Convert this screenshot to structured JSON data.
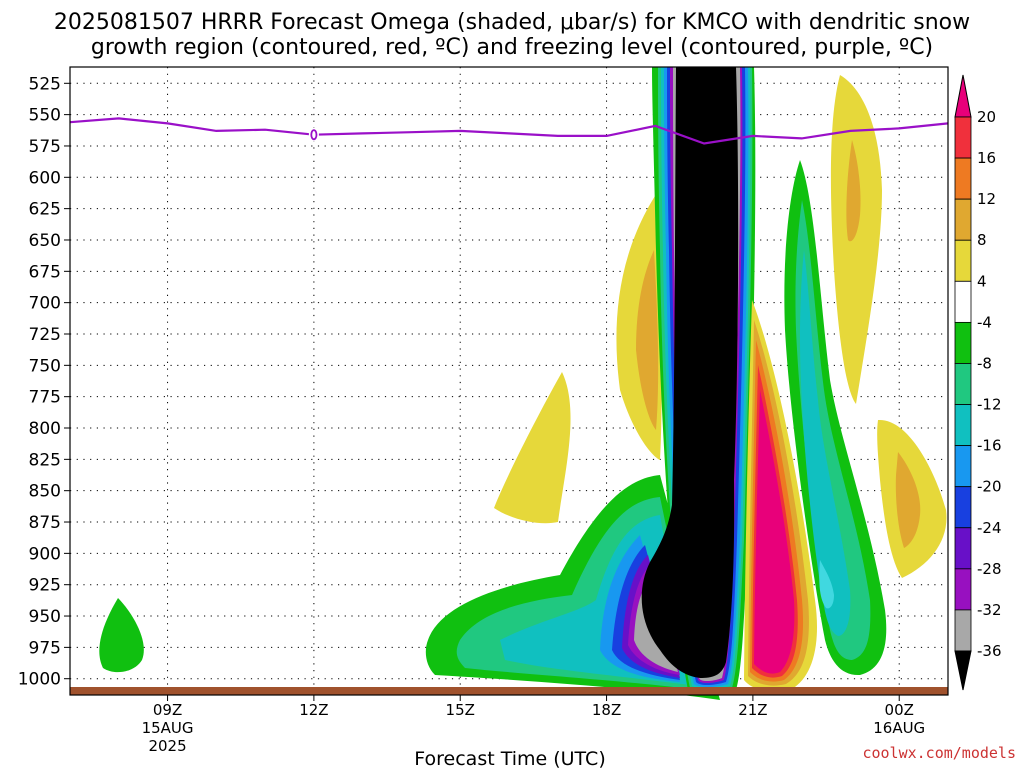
{
  "chart_data": {
    "type": "heatmap",
    "title_line1": "2025081507 HRRR Forecast Omega (shaded, μbar/s) for KMCO with dendritic snow",
    "title_line2": "growth region (contoured, red, ºC) and freezing level (contoured, purple, ºC)",
    "xlabel": "Forecast Time (UTC)",
    "credit": "coolwx.com/models",
    "y_ticks": [
      525,
      550,
      575,
      600,
      625,
      650,
      675,
      700,
      725,
      750,
      775,
      800,
      825,
      850,
      875,
      900,
      925,
      950,
      975,
      1000
    ],
    "ylim": [
      1013,
      512
    ],
    "x_ticks": [
      {
        "label": "09Z",
        "hour": 9,
        "sub1": "15AUG",
        "sub2": "2025"
      },
      {
        "label": "12Z",
        "hour": 12,
        "sub1": "",
        "sub2": ""
      },
      {
        "label": "15Z",
        "hour": 15,
        "sub1": "",
        "sub2": ""
      },
      {
        "label": "18Z",
        "hour": 18,
        "sub1": "",
        "sub2": ""
      },
      {
        "label": "21Z",
        "hour": 21,
        "sub1": "",
        "sub2": ""
      },
      {
        "label": "00Z",
        "hour": 24,
        "sub1": "16AUG",
        "sub2": ""
      }
    ],
    "xlim": [
      7,
      25
    ],
    "grid": true,
    "colorbar": {
      "ticks": [
        "20",
        "16",
        "12",
        "8",
        "4",
        "-4",
        "-8",
        "-12",
        "-16",
        "-20",
        "-24",
        "-28",
        "-32",
        "-36"
      ],
      "colors": [
        "#e8007a",
        "#f0303c",
        "#ee7a22",
        "#e0a830",
        "#e6d83a",
        "#ffffff",
        "#10c010",
        "#20c880",
        "#10c0c0",
        "#1898f0",
        "#1840e0",
        "#6810c8",
        "#9810c0",
        "#a8a8a8",
        "#000000"
      ]
    },
    "freezing_level": {
      "name": "freezing level",
      "color": "#9a10c8",
      "x": [
        7,
        8,
        9,
        10,
        11,
        12,
        13,
        14,
        15,
        16,
        17,
        18,
        19,
        20,
        21,
        22,
        23,
        24,
        25
      ],
      "y": [
        556,
        553,
        557,
        563,
        562,
        566,
        565,
        564,
        563,
        565,
        567,
        567,
        559,
        573,
        567,
        569,
        563,
        561,
        557
      ]
    },
    "omega_regions": [
      {
        "label": "column-ascent",
        "hour": 19.9,
        "values": "-36 to -8"
      },
      {
        "label": "low-level-ascent",
        "hour": 17.5,
        "values": "-28 to -8"
      },
      {
        "label": "descent-east",
        "hour": 21.2,
        "values": "4 to 20"
      },
      {
        "label": "descent-mid",
        "hour": 18.6,
        "values": "4 to 12"
      },
      {
        "label": "descent-far-east",
        "hour": 23.8,
        "values": "4 to 12"
      }
    ]
  }
}
